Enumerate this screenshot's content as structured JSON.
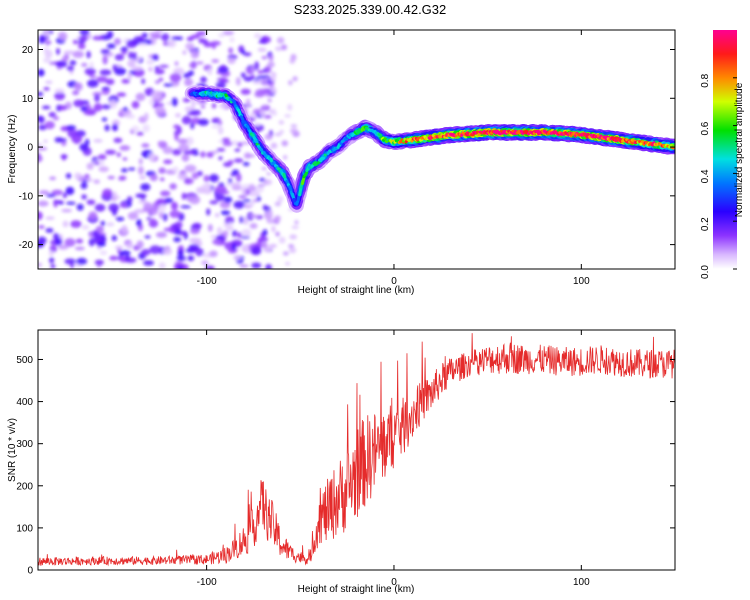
{
  "title": "S233.2025.339.00.42.G32",
  "chart_data": [
    {
      "type": "heatmap",
      "name": "spectrogram",
      "xlabel": "Height of straight line (km)",
      "ylabel": "Frequency (Hz)",
      "xlim": [
        -190,
        150
      ],
      "ylim": [
        -25,
        24
      ],
      "xticks": [
        -100,
        0,
        100
      ],
      "xtick_labels": [
        "-100",
        "0",
        "100"
      ],
      "yticks": [
        -20,
        -10,
        0,
        10,
        20
      ],
      "ytick_labels": [
        "-20",
        "-10",
        "0",
        "10",
        "20"
      ],
      "colorbar": {
        "label": "Normalized spectral amplitude",
        "range": [
          0,
          1
        ],
        "ticks": [
          0.0,
          0.2,
          0.4,
          0.6,
          0.8
        ],
        "tick_labels": [
          "0.0",
          "0.2",
          "0.4",
          "0.6",
          "0.8"
        ]
      },
      "ridge": {
        "x": [
          -108,
          -100,
          -90,
          -85,
          -80,
          -75,
          -70,
          -65,
          -60,
          -57,
          -55,
          -52,
          -48,
          -45,
          -40,
          -35,
          -30,
          -25,
          -20,
          -15,
          -10,
          -5,
          0,
          10,
          20,
          30,
          40,
          50,
          60,
          70,
          80,
          90,
          100,
          110,
          120,
          130,
          140,
          150
        ],
        "freq": [
          11,
          11,
          10.5,
          9,
          5,
          2,
          -1,
          -3,
          -5,
          -7,
          -9,
          -12,
          -6,
          -4,
          -3,
          -1,
          0,
          2,
          3,
          4,
          3,
          1.5,
          1,
          1.5,
          2,
          2.5,
          2.7,
          3,
          3,
          3,
          3,
          2.8,
          2.5,
          2,
          1.5,
          1,
          0.5,
          0
        ],
        "amplitude": [
          0.3,
          0.45,
          0.5,
          0.4,
          0.4,
          0.5,
          0.45,
          0.4,
          0.5,
          0.45,
          0.4,
          0.35,
          0.55,
          0.5,
          0.5,
          0.45,
          0.4,
          0.35,
          0.5,
          0.55,
          0.5,
          0.6,
          0.65,
          0.8,
          0.85,
          0.9,
          0.95,
          1.0,
          0.95,
          0.95,
          1.0,
          0.95,
          0.9,
          0.95,
          0.9,
          0.85,
          0.85,
          0.7
        ]
      },
      "noise_region": {
        "x_range": [
          -190,
          -85
        ],
        "freq_range": [
          -25,
          24
        ],
        "amplitude": 0.2
      }
    },
    {
      "type": "line",
      "name": "snr",
      "xlabel": "Height of straight line (km)",
      "ylabel": "SNR (10 * v/v)",
      "xlim": [
        -190,
        150
      ],
      "ylim": [
        0,
        570
      ],
      "xticks": [
        -100,
        0,
        100
      ],
      "xtick_labels": [
        "-100",
        "0",
        "100"
      ],
      "yticks": [
        0,
        100,
        200,
        300,
        400,
        500
      ],
      "ytick_labels": [
        "0",
        "100",
        "200",
        "300",
        "400",
        "500"
      ],
      "color": "#e52b2b",
      "series": {
        "name": "SNR",
        "x": [
          -190,
          -160,
          -130,
          -100,
          -90,
          -85,
          -80,
          -75,
          -72,
          -70,
          -68,
          -65,
          -60,
          -55,
          -50,
          -45,
          -40,
          -35,
          -30,
          -25,
          -20,
          -15,
          -10,
          -5,
          0,
          5,
          10,
          15,
          20,
          25,
          30,
          40,
          50,
          60,
          70,
          80,
          90,
          100,
          110,
          120,
          130,
          140,
          150
        ],
        "y": [
          20,
          22,
          22,
          25,
          35,
          50,
          70,
          100,
          140,
          160,
          130,
          110,
          60,
          40,
          30,
          25,
          120,
          140,
          170,
          190,
          230,
          260,
          280,
          300,
          320,
          340,
          370,
          400,
          420,
          450,
          470,
          490,
          500,
          505,
          500,
          500,
          495,
          495,
          500,
          495,
          490,
          490,
          490
        ],
        "spread": [
          10,
          10,
          10,
          12,
          20,
          25,
          40,
          50,
          60,
          70,
          60,
          55,
          35,
          20,
          15,
          12,
          60,
          80,
          90,
          100,
          110,
          110,
          100,
          90,
          80,
          70,
          60,
          50,
          45,
          40,
          35,
          30,
          35,
          40,
          35,
          35,
          35,
          35,
          35,
          35,
          35,
          35,
          35
        ]
      }
    }
  ]
}
